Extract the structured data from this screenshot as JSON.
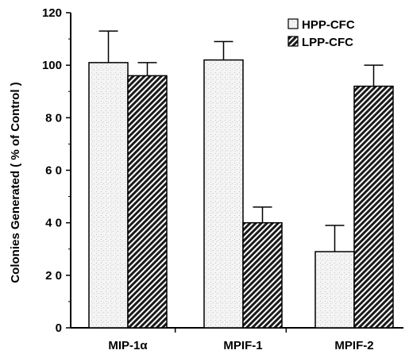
{
  "chart_data": {
    "type": "bar",
    "title": "",
    "xlabel": "",
    "ylabel": "Colonies Generated ( % of Control )",
    "ylim": [
      0,
      120
    ],
    "yticks": [
      0,
      20,
      40,
      60,
      80,
      100,
      120
    ],
    "ytick_labels": [
      "0",
      "2 0",
      "4 0",
      "6 0",
      "8 0",
      "100",
      "120"
    ],
    "categories": [
      "MIP-1α",
      "MPIF-1",
      "MPIF-2"
    ],
    "series": [
      {
        "name": "HPP-CFC",
        "values": [
          101,
          102,
          29
        ],
        "errors": [
          12,
          7,
          10
        ],
        "color": "#efefef",
        "pattern": "stipple"
      },
      {
        "name": "LPP-CFC",
        "values": [
          96,
          40,
          92
        ],
        "errors": [
          5,
          6,
          8
        ],
        "color": "#222222",
        "pattern": "diagonal-hatch"
      }
    ],
    "grid": false,
    "legend": "top-right"
  }
}
